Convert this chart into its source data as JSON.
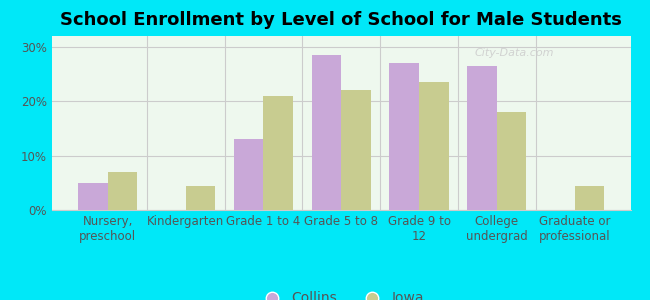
{
  "title": "School Enrollment by Level of School for Male Students",
  "categories": [
    "Nursery,\npreschool",
    "Kindergarten",
    "Grade 1 to 4",
    "Grade 5 to 8",
    "Grade 9 to\n12",
    "College\nundergrad",
    "Graduate or\nprofessional"
  ],
  "collins_values": [
    5.0,
    0.0,
    13.0,
    28.5,
    27.0,
    26.5,
    0.0
  ],
  "iowa_values": [
    7.0,
    4.5,
    21.0,
    22.0,
    23.5,
    18.0,
    4.5
  ],
  "collins_color": "#c9a8d8",
  "iowa_color": "#c8cc90",
  "background_outer": "#00e8f8",
  "background_inner_tl": "#e8f5e8",
  "background_inner_br": "#f5fff5",
  "ylim": [
    0,
    32
  ],
  "yticks": [
    0,
    10,
    20,
    30
  ],
  "ytick_labels": [
    "0%",
    "10%",
    "20%",
    "30%"
  ],
  "legend_labels": [
    "Collins",
    "Iowa"
  ],
  "bar_width": 0.38,
  "grid_color": "#cccccc",
  "title_fontsize": 13,
  "axis_fontsize": 8.5,
  "legend_fontsize": 10,
  "watermark": "City-Data.com",
  "watermark_color": "#cccccc"
}
